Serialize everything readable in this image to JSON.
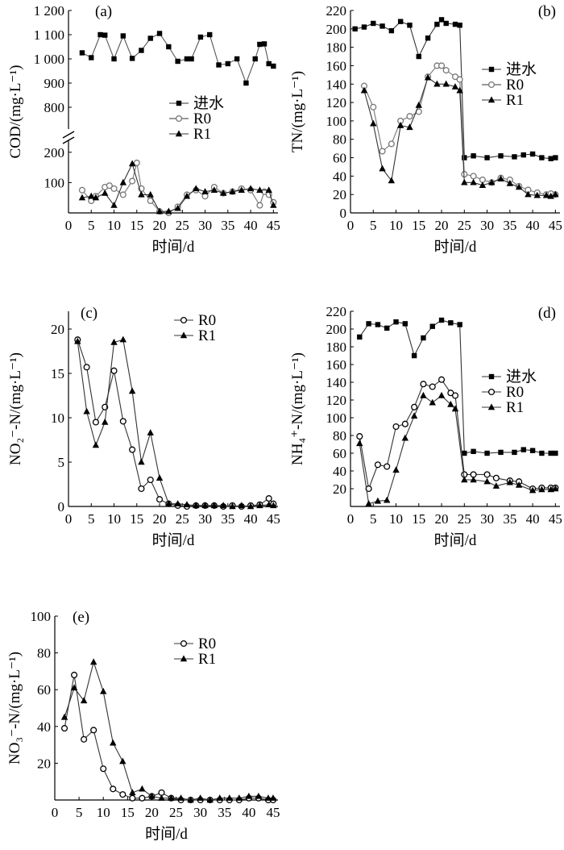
{
  "chart_data": [
    {
      "type": "line",
      "panel_label": "(a)",
      "xlabel": "时间/d",
      "ylabel": "COD/(mg·L⁻¹)",
      "xlim": [
        0,
        46
      ],
      "xticks": [
        0,
        5,
        10,
        15,
        20,
        25,
        30,
        35,
        40,
        45
      ],
      "axis_break": {
        "lower_range": [
          0,
          250
        ],
        "upper_range": [
          700,
          1200
        ]
      },
      "yticks": [
        100,
        200,
        800,
        900,
        1000,
        1100,
        1200
      ],
      "ytick_labels": [
        "100",
        "200",
        "800",
        "900",
        "1 000",
        "1 100",
        "1 200"
      ],
      "legend_position": "center-left",
      "series": [
        {
          "name": "进水",
          "marker": "square",
          "color": "#000000",
          "x": [
            3,
            5,
            7,
            8,
            10,
            12,
            14,
            16,
            18,
            20,
            22,
            24,
            26,
            27,
            29,
            31,
            33,
            35,
            37,
            39,
            41,
            42,
            43,
            44,
            45
          ],
          "y": [
            1025,
            1005,
            1100,
            1098,
            1000,
            1095,
            1002,
            1035,
            1085,
            1105,
            1050,
            990,
            1000,
            1000,
            1090,
            1100,
            975,
            980,
            1000,
            900,
            1000,
            1060,
            1062,
            980,
            970
          ]
        },
        {
          "name": "R0",
          "marker": "circle",
          "color": "#777777",
          "x": [
            3,
            5,
            6,
            8,
            9,
            10,
            12,
            14,
            15,
            16,
            18,
            20,
            22,
            24,
            26,
            28,
            30,
            32,
            34,
            36,
            38,
            40,
            42,
            43,
            44,
            45
          ],
          "y": [
            75,
            40,
            55,
            85,
            90,
            80,
            60,
            105,
            165,
            80,
            40,
            5,
            0,
            20,
            60,
            75,
            55,
            85,
            65,
            70,
            80,
            75,
            25,
            70,
            60,
            35
          ]
        },
        {
          "name": "R1",
          "marker": "triangle",
          "color": "#000000",
          "x": [
            3,
            5,
            6,
            8,
            10,
            12,
            14,
            16,
            18,
            20,
            22,
            24,
            26,
            28,
            30,
            32,
            34,
            36,
            38,
            40,
            42,
            44,
            45
          ],
          "y": [
            50,
            55,
            50,
            65,
            25,
            100,
            162,
            60,
            60,
            5,
            5,
            15,
            55,
            80,
            70,
            75,
            65,
            70,
            75,
            80,
            75,
            75,
            25
          ]
        }
      ]
    },
    {
      "type": "line",
      "panel_label": "(b)",
      "xlabel": "时间/d",
      "ylabel": "TN/(mg·L⁻¹)",
      "xlim": [
        0,
        46
      ],
      "ylim": [
        0,
        220
      ],
      "xticks": [
        0,
        5,
        10,
        15,
        20,
        25,
        30,
        35,
        40,
        45
      ],
      "yticks": [
        0,
        20,
        40,
        60,
        80,
        100,
        120,
        140,
        160,
        180,
        200,
        220
      ],
      "legend_position": "center-right",
      "series": [
        {
          "name": "进水",
          "marker": "square",
          "color": "#000000",
          "x": [
            1,
            3,
            5,
            7,
            9,
            11,
            13,
            15,
            17,
            19,
            20,
            21,
            23,
            24,
            25,
            27,
            30,
            33,
            36,
            38,
            40,
            42,
            44,
            45
          ],
          "y": [
            200,
            202,
            206,
            203,
            198,
            208,
            204,
            170,
            190,
            205,
            210,
            206,
            205,
            204,
            60,
            62,
            60,
            62,
            61,
            63,
            64,
            60,
            59,
            60
          ]
        },
        {
          "name": "R0",
          "marker": "circle",
          "color": "#777777",
          "x": [
            3,
            5,
            7,
            9,
            11,
            13,
            15,
            17,
            19,
            20,
            21,
            23,
            24,
            25,
            27,
            29,
            31,
            33,
            35,
            37,
            39,
            41,
            43,
            44,
            45
          ],
          "y": [
            138,
            115,
            67,
            75,
            100,
            105,
            110,
            148,
            160,
            160,
            155,
            148,
            145,
            42,
            40,
            36,
            33,
            38,
            36,
            29,
            25,
            22,
            20,
            21,
            20
          ]
        },
        {
          "name": "R1",
          "marker": "triangle",
          "color": "#000000",
          "x": [
            3,
            5,
            7,
            9,
            11,
            13,
            15,
            17,
            19,
            21,
            23,
            24,
            25,
            27,
            29,
            31,
            33,
            35,
            37,
            39,
            41,
            43,
            44,
            45
          ],
          "y": [
            133,
            97,
            48,
            35,
            95,
            93,
            117,
            147,
            140,
            140,
            137,
            133,
            33,
            33,
            30,
            33,
            37,
            32,
            28,
            20,
            19,
            19,
            18,
            20
          ]
        }
      ]
    },
    {
      "type": "line",
      "panel_label": "(c)",
      "xlabel": "时间/d",
      "ylabel": "NO₂⁻-N/(mg·L⁻¹)",
      "xlim": [
        0,
        46
      ],
      "ylim": [
        0,
        22
      ],
      "xticks": [
        0,
        5,
        10,
        15,
        20,
        25,
        30,
        35,
        40,
        45
      ],
      "yticks": [
        0,
        5,
        10,
        15,
        20
      ],
      "legend_position": "top-right",
      "series": [
        {
          "name": "R0",
          "marker": "circle",
          "color": "#000000",
          "x": [
            2,
            4,
            6,
            8,
            10,
            12,
            14,
            16,
            18,
            20,
            22,
            24,
            26,
            28,
            30,
            32,
            34,
            36,
            38,
            40,
            42,
            44,
            45
          ],
          "y": [
            18.8,
            15.7,
            9.5,
            11.2,
            15.3,
            9.6,
            6.4,
            2.0,
            3.0,
            0.8,
            0.3,
            0.1,
            0.0,
            0.1,
            0.1,
            0.1,
            0.0,
            0.1,
            0.0,
            0.1,
            0.2,
            0.9,
            0.3
          ]
        },
        {
          "name": "R1",
          "marker": "triangle",
          "color": "#000000",
          "x": [
            2,
            4,
            6,
            8,
            10,
            12,
            14,
            16,
            18,
            20,
            22,
            24,
            26,
            28,
            30,
            32,
            34,
            36,
            38,
            40,
            42,
            44,
            45
          ],
          "y": [
            18.6,
            10.7,
            6.9,
            9.5,
            18.5,
            18.8,
            13.0,
            5.0,
            8.3,
            3.2,
            0.3,
            0.3,
            0.2,
            0.1,
            0.1,
            0.1,
            0.1,
            0.0,
            0.1,
            0.0,
            0.1,
            0.2,
            0.1
          ]
        }
      ]
    },
    {
      "type": "line",
      "panel_label": "(d)",
      "xlabel": "时间/d",
      "ylabel": "NH₄⁺-N/(mg·L⁻¹)",
      "xlim": [
        0,
        46
      ],
      "ylim": [
        0,
        220
      ],
      "xticks": [
        0,
        5,
        10,
        15,
        20,
        25,
        30,
        35,
        40,
        45
      ],
      "yticks": [
        20,
        40,
        60,
        80,
        100,
        120,
        140,
        160,
        180,
        200,
        220
      ],
      "legend_position": "center-right",
      "series": [
        {
          "name": "进水",
          "marker": "square",
          "color": "#000000",
          "x": [
            2,
            4,
            6,
            8,
            10,
            12,
            14,
            16,
            18,
            20,
            22,
            24,
            25,
            27,
            30,
            33,
            36,
            38,
            40,
            42,
            44,
            45
          ],
          "y": [
            191,
            206,
            205,
            201,
            208,
            206,
            170,
            190,
            203,
            210,
            207,
            205,
            60,
            62,
            60,
            61,
            61,
            64,
            63,
            60,
            60,
            60
          ]
        },
        {
          "name": "R0",
          "marker": "circle",
          "color": "#000000",
          "x": [
            2,
            4,
            6,
            8,
            10,
            12,
            14,
            16,
            18,
            20,
            22,
            23,
            25,
            27,
            30,
            32,
            35,
            37,
            40,
            42,
            44,
            45
          ],
          "y": [
            79,
            20,
            47,
            45,
            90,
            93,
            112,
            138,
            135,
            143,
            128,
            125,
            36,
            36,
            36,
            32,
            29,
            28,
            20,
            21,
            21,
            21
          ]
        },
        {
          "name": "R1",
          "marker": "triangle",
          "color": "#000000",
          "x": [
            2,
            4,
            6,
            8,
            10,
            12,
            14,
            16,
            18,
            20,
            22,
            23,
            25,
            27,
            30,
            32,
            35,
            37,
            40,
            42,
            44,
            45
          ],
          "y": [
            71,
            3,
            6,
            7,
            41,
            77,
            102,
            125,
            117,
            125,
            115,
            110,
            30,
            30,
            28,
            23,
            27,
            24,
            18,
            19,
            19,
            20
          ]
        }
      ]
    },
    {
      "type": "line",
      "panel_label": "(e)",
      "xlabel": "时间/d",
      "ylabel": "NO₃⁻-N/(mg·L⁻¹)",
      "xlim": [
        0,
        46
      ],
      "ylim": [
        0,
        100
      ],
      "xticks": [
        0,
        5,
        10,
        15,
        20,
        25,
        30,
        35,
        40,
        45
      ],
      "yticks": [
        20,
        40,
        60,
        80,
        100
      ],
      "legend_position": "center-right",
      "series": [
        {
          "name": "R0",
          "marker": "circle",
          "color": "#000000",
          "x": [
            2,
            4,
            6,
            8,
            10,
            12,
            14,
            16,
            18,
            20,
            22,
            24,
            26,
            28,
            30,
            32,
            34,
            36,
            38,
            40,
            42,
            44,
            45
          ],
          "y": [
            39,
            68,
            33,
            38,
            17,
            6,
            3,
            1,
            1,
            2,
            4,
            1,
            0,
            0,
            0,
            0,
            0,
            0,
            0,
            1,
            1,
            0,
            0
          ]
        },
        {
          "name": "R1",
          "marker": "triangle",
          "color": "#000000",
          "x": [
            2,
            4,
            6,
            8,
            10,
            12,
            14,
            16,
            18,
            20,
            22,
            24,
            26,
            28,
            30,
            32,
            34,
            36,
            38,
            40,
            42,
            44,
            45
          ],
          "y": [
            45,
            61,
            54,
            75,
            59,
            31,
            21,
            4,
            6,
            2,
            1,
            1,
            1,
            0,
            1,
            0,
            1,
            1,
            1,
            2,
            2,
            1,
            1
          ]
        }
      ]
    }
  ]
}
